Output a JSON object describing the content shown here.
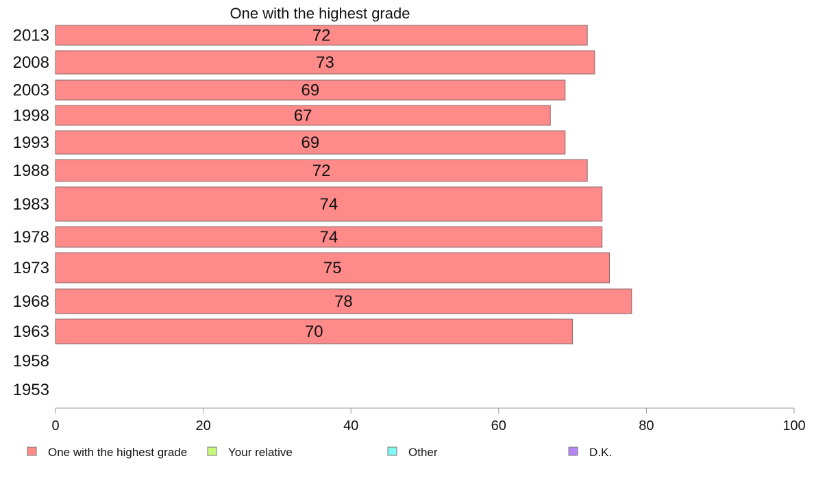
{
  "chart_data": {
    "type": "bar",
    "orientation": "horizontal",
    "title": "One with the highest grade",
    "categories": [
      "2013",
      "2008",
      "2003",
      "1998",
      "1993",
      "1988",
      "1983",
      "1978",
      "1973",
      "1968",
      "1963",
      "1958",
      "1953"
    ],
    "series": [
      {
        "name": "One with the highest grade",
        "values": [
          72,
          73,
          69,
          67,
          69,
          72,
          74,
          74,
          75,
          78,
          70,
          null,
          null
        ],
        "color": "#ff8a8a"
      }
    ],
    "xlim": [
      0,
      100
    ],
    "xticks": [
      "0",
      "20",
      "40",
      "60",
      "80",
      "100"
    ],
    "grid": false,
    "legend_placement": "bottom",
    "legend": [
      {
        "label": "One with the highest grade",
        "color": "#ff8a8a"
      },
      {
        "label": "Your relative",
        "color": "#c6f97a"
      },
      {
        "label": "Other",
        "color": "#7ff7f2"
      },
      {
        "label": "D.K.",
        "color": "#b784f5"
      }
    ]
  }
}
